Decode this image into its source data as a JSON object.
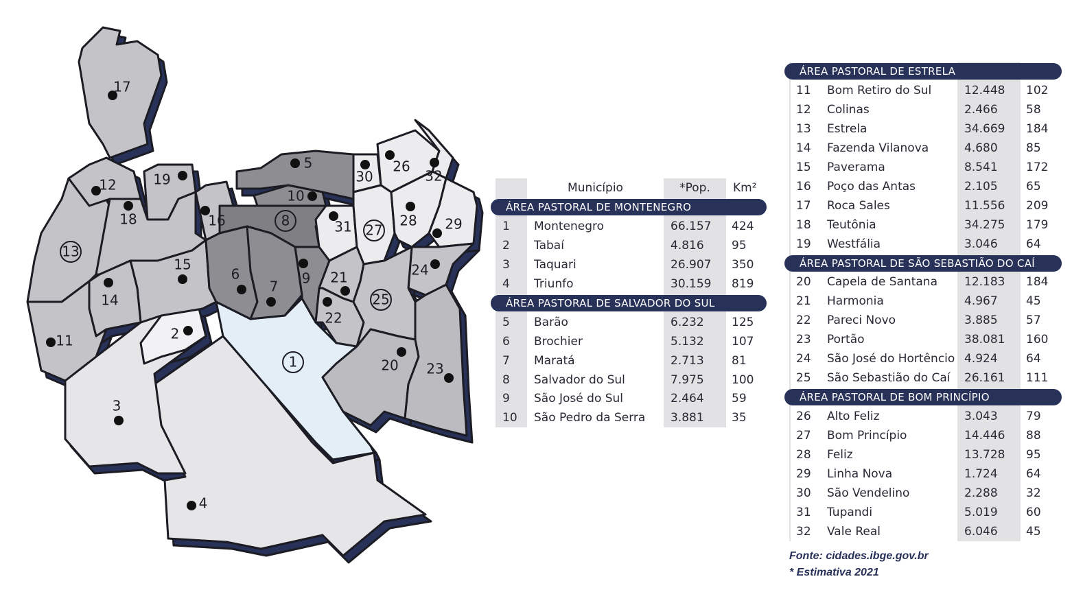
{
  "map": {
    "labels": [
      "1",
      "2",
      "3",
      "4",
      "5",
      "6",
      "7",
      "8",
      "9",
      "10",
      "11",
      "12",
      "13",
      "14",
      "15",
      "16",
      "17",
      "18",
      "19",
      "20",
      "21",
      "22",
      "23",
      "24",
      "25",
      "26",
      "27",
      "28",
      "29",
      "30",
      "31",
      "32"
    ]
  },
  "table_left": {
    "header": [
      "Município",
      "*Pop.",
      "Km²"
    ],
    "sections": [
      {
        "title": "ÁREA PASTORAL DE MONTENEGRO",
        "rows": [
          [
            "1",
            "Montenegro",
            "66.157",
            "424"
          ],
          [
            "2",
            "Tabaí",
            "4.816",
            "95"
          ],
          [
            "3",
            "Taquari",
            "26.907",
            "350"
          ],
          [
            "4",
            "Triunfo",
            "30.159",
            "819"
          ]
        ]
      },
      {
        "title": "ÁREA PASTORAL DE SALVADOR DO SUL",
        "rows": [
          [
            "5",
            "Barão",
            "6.232",
            "125"
          ],
          [
            "6",
            "Brochier",
            "5.132",
            "107"
          ],
          [
            "7",
            "Maratá",
            "2.713",
            "81"
          ],
          [
            "8",
            "Salvador do Sul",
            "7.975",
            "100"
          ],
          [
            "9",
            "São José do Sul",
            "2.464",
            "59"
          ],
          [
            "10",
            "São Pedro da Serra",
            "3.881",
            "35"
          ]
        ]
      }
    ]
  },
  "table_right": {
    "sections": [
      {
        "title": "ÁREA PASTORAL DE ESTRELA",
        "rows": [
          [
            "11",
            "Bom Retiro do Sul",
            "12.448",
            "102"
          ],
          [
            "12",
            "Colinas",
            "2.466",
            "58"
          ],
          [
            "13",
            "Estrela",
            "34.669",
            "184"
          ],
          [
            "14",
            "Fazenda Vilanova",
            "4.680",
            "85"
          ],
          [
            "15",
            "Paverama",
            "8.541",
            "172"
          ],
          [
            "16",
            "Poço das Antas",
            "2.105",
            "65"
          ],
          [
            "17",
            "Roca Sales",
            "11.556",
            "209"
          ],
          [
            "18",
            "Teutônia",
            "34.275",
            "179"
          ],
          [
            "19",
            "Westfália",
            "3.046",
            "64"
          ]
        ]
      },
      {
        "title": "ÁREA PASTORAL DE SÃO SEBASTIÃO DO CAÍ",
        "rows": [
          [
            "20",
            "Capela de Santana",
            "12.183",
            "184"
          ],
          [
            "21",
            "Harmonia",
            "4.967",
            "45"
          ],
          [
            "22",
            "Pareci Novo",
            "3.885",
            "57"
          ],
          [
            "23",
            "Portão",
            "38.081",
            "160"
          ],
          [
            "24",
            "São José do Hortêncio",
            "4.924",
            "64"
          ],
          [
            "25",
            "São Sebastião do Caí",
            "26.161",
            "111"
          ]
        ]
      },
      {
        "title": "ÁREA PASTORAL DE BOM PRINCÍPIO",
        "rows": [
          [
            "26",
            "Alto Feliz",
            "3.043",
            "79"
          ],
          [
            "27",
            "Bom Princípio",
            "14.446",
            "88"
          ],
          [
            "28",
            "Feliz",
            "13.728",
            "95"
          ],
          [
            "29",
            "Linha Nova",
            "1.724",
            "64"
          ],
          [
            "30",
            "São Vendelino",
            "2.288",
            "32"
          ],
          [
            "31",
            "Tupandi",
            "5.019",
            "60"
          ],
          [
            "32",
            "Vale Real",
            "6.046",
            "45"
          ]
        ]
      }
    ]
  },
  "footer": {
    "source": "Fonte: cidades.ibge.gov.br",
    "note": "* Estimativa 2021"
  }
}
